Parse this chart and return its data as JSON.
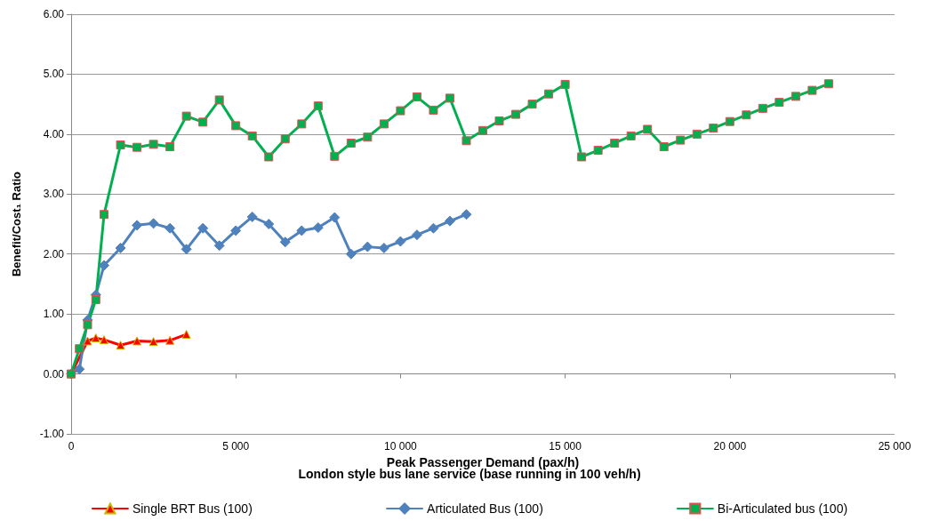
{
  "chart_data": {
    "type": "line",
    "xlabel": "Peak Passenger Demand (pax/h)",
    "ylabel": "Benefit/Cost₁ Ratio",
    "annotations": [
      "London style bus lane service (base running in 100 veh/h)"
    ],
    "xlim": [
      0,
      25000
    ],
    "xticks": [
      0,
      {
        "value": 5000,
        "label": "5 000"
      },
      {
        "value": 10000,
        "label": "10 000"
      },
      {
        "value": 15000,
        "label": "15 000"
      },
      {
        "value": 20000,
        "label": "20 000"
      },
      {
        "value": 25000,
        "label": "25 000"
      }
    ],
    "ylim": [
      -1,
      6
    ],
    "yticks": [
      {
        "value": -1,
        "label": "-1.00"
      },
      {
        "value": 0,
        "label": "0.00"
      },
      {
        "value": 1,
        "label": "1.00"
      },
      {
        "value": 2,
        "label": "2.00"
      },
      {
        "value": 3,
        "label": "3.00"
      },
      {
        "value": 4,
        "label": "4.00"
      },
      {
        "value": 5,
        "label": "5.00"
      },
      {
        "value": 6,
        "label": "6.00"
      }
    ],
    "grid": "y",
    "legend": "bottom",
    "line_style": "solid",
    "series": [
      {
        "name": "Single BRT Bus (100)",
        "color": "#ff0000",
        "marker": "triangle",
        "x": [
          0,
          250,
          500,
          750,
          1000,
          1500,
          2000,
          2500,
          3000,
          3500
        ],
        "values": [
          0,
          null,
          0.55,
          0.6,
          0.57,
          0.48,
          0.55,
          0.54,
          0.56,
          0.66
        ]
      },
      {
        "name": "Articulated Bus (100)",
        "color": "#4f81bd",
        "marker": "diamond",
        "x": [
          0,
          250,
          500,
          750,
          1000,
          1500,
          2000,
          2500,
          3000,
          3500,
          4000,
          4500,
          5000,
          5500,
          6000,
          6500,
          7000,
          7500,
          8000,
          8500,
          9000,
          9500,
          10000,
          10500,
          11000,
          11500,
          12000
        ],
        "values": [
          0,
          0.08,
          0.9,
          1.32,
          1.81,
          2.1,
          2.48,
          2.51,
          2.43,
          2.08,
          2.43,
          2.14,
          2.39,
          2.62,
          2.5,
          2.2,
          2.39,
          2.44,
          2.61,
          2.0,
          2.12,
          2.1,
          2.21,
          2.32,
          2.43,
          2.55,
          2.66
        ]
      },
      {
        "name": "Bi-Articulated bus (100)",
        "color": "#00b050",
        "marker": "square",
        "x": [
          0,
          250,
          500,
          750,
          1000,
          1500,
          2000,
          2500,
          3000,
          3500,
          4000,
          4500,
          5000,
          5500,
          6000,
          6500,
          7000,
          7500,
          8000,
          8500,
          9000,
          9500,
          10000,
          10500,
          11000,
          11500,
          12000,
          12500,
          13000,
          13500,
          14000,
          14500,
          15000,
          15500,
          16000,
          16500,
          17000,
          17500,
          18000,
          18500,
          19000,
          19500,
          20000,
          20500,
          21000,
          21500,
          22000,
          22500,
          23000
        ],
        "values": [
          0,
          0.42,
          0.82,
          1.24,
          2.66,
          3.82,
          3.78,
          3.83,
          3.79,
          4.3,
          4.2,
          4.57,
          4.14,
          3.97,
          3.62,
          3.92,
          4.17,
          4.47,
          3.63,
          3.85,
          3.95,
          4.17,
          4.39,
          4.62,
          4.4,
          4.6,
          3.89,
          4.06,
          4.22,
          4.33,
          4.5,
          4.67,
          4.83,
          3.62,
          3.73,
          3.85,
          3.97,
          4.08,
          3.79,
          3.9,
          4.0,
          4.1,
          4.21,
          4.32,
          4.43,
          4.53,
          4.63,
          4.73,
          4.84
        ]
      }
    ]
  }
}
